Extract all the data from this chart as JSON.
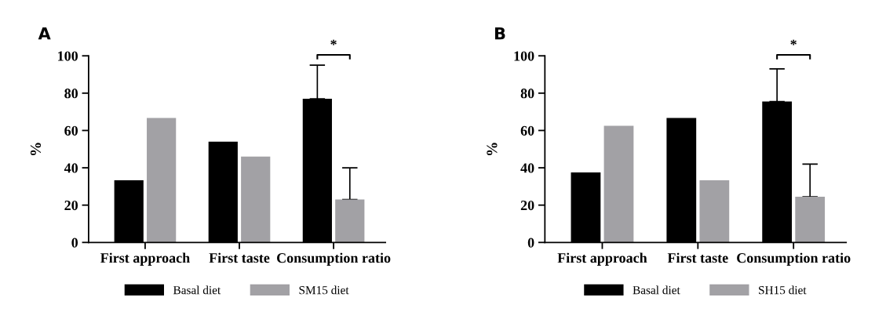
{
  "chart_data": [
    {
      "type": "bar",
      "title": "A",
      "ylabel": "%",
      "categories": [
        "First approach",
        "First taste",
        "Consumption ratio"
      ],
      "series": [
        {
          "name": "Basal diet",
          "color": "#000000",
          "values": [
            33.3,
            54,
            77
          ],
          "errors": [
            null,
            null,
            [
              77,
              95
            ]
          ]
        },
        {
          "name": "SM15 diet",
          "color": "#a2a1a5",
          "values": [
            66.7,
            46,
            23
          ],
          "errors": [
            null,
            null,
            [
              23,
              40
            ]
          ]
        }
      ],
      "ylim": [
        0,
        100
      ],
      "yticks": [
        0,
        20,
        40,
        60,
        80,
        100
      ],
      "grid": false,
      "legend": "bottom",
      "annotations": [
        "*"
      ]
    },
    {
      "type": "bar",
      "title": "B",
      "ylabel": "%",
      "categories": [
        "First approach",
        "First taste",
        "Consumption ratio"
      ],
      "series": [
        {
          "name": "Basal diet",
          "color": "#000000",
          "values": [
            37.5,
            66.7,
            75.5
          ],
          "errors": [
            null,
            null,
            [
              75.5,
              93
            ]
          ]
        },
        {
          "name": "SH15 diet",
          "color": "#a2a1a5",
          "values": [
            62.5,
            33.3,
            24.5
          ],
          "errors": [
            null,
            null,
            [
              24.5,
              42
            ]
          ]
        }
      ],
      "ylim": [
        0,
        100
      ],
      "yticks": [
        0,
        20,
        40,
        60,
        80,
        100
      ],
      "grid": false,
      "legend": "bottom",
      "annotations": [
        "*"
      ]
    }
  ]
}
